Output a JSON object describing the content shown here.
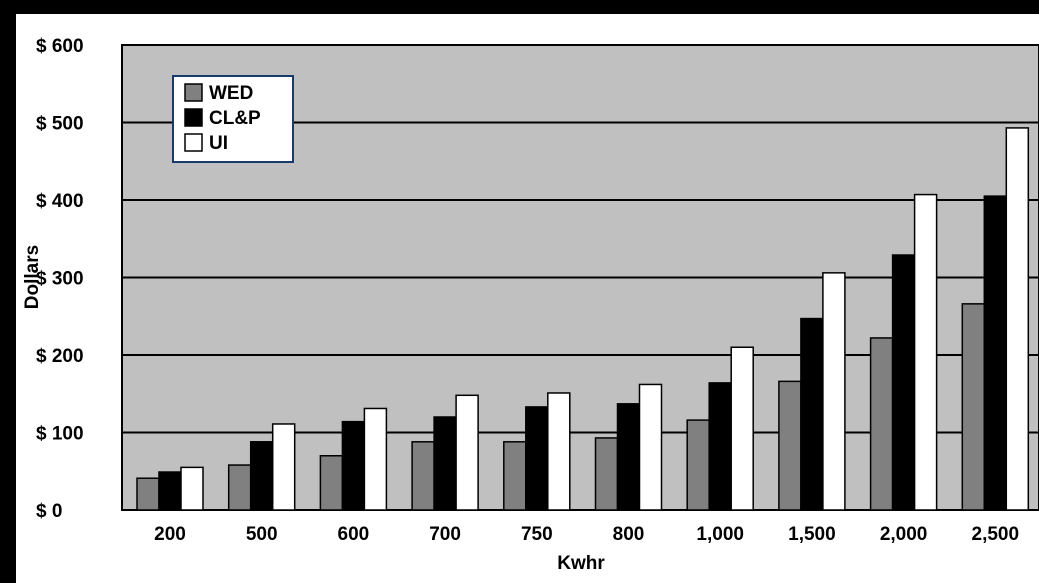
{
  "chart_data": {
    "type": "bar",
    "title": "",
    "xlabel": "Kwhr",
    "ylabel": "Dollars",
    "ylim": [
      0,
      600
    ],
    "y_ticks": [
      {
        "value": 0,
        "label": "$  0"
      },
      {
        "value": 100,
        "label": "$ 100"
      },
      {
        "value": 200,
        "label": "$ 200"
      },
      {
        "value": 300,
        "label": "$ 300"
      },
      {
        "value": 400,
        "label": "$ 400"
      },
      {
        "value": 500,
        "label": "$ 500"
      },
      {
        "value": 600,
        "label": "$ 600"
      }
    ],
    "categories": [
      "200",
      "500",
      "600",
      "700",
      "750",
      "800",
      "1,000",
      "1,500",
      "2,000",
      "2,500"
    ],
    "series": [
      {
        "name": "WED",
        "color": "#808080",
        "values": [
          41,
          58,
          70,
          88,
          88,
          93,
          116,
          166,
          222,
          266
        ]
      },
      {
        "name": "CL&P",
        "color": "#000000",
        "values": [
          49,
          88,
          114,
          120,
          133,
          137,
          164,
          247,
          329,
          405
        ]
      },
      {
        "name": "UI",
        "color": "#ffffff",
        "values": [
          55,
          111,
          131,
          148,
          151,
          162,
          210,
          306,
          407,
          493
        ]
      }
    ],
    "grid": true,
    "legend_position": "top-left",
    "plot_background": "#c0c0c0"
  }
}
